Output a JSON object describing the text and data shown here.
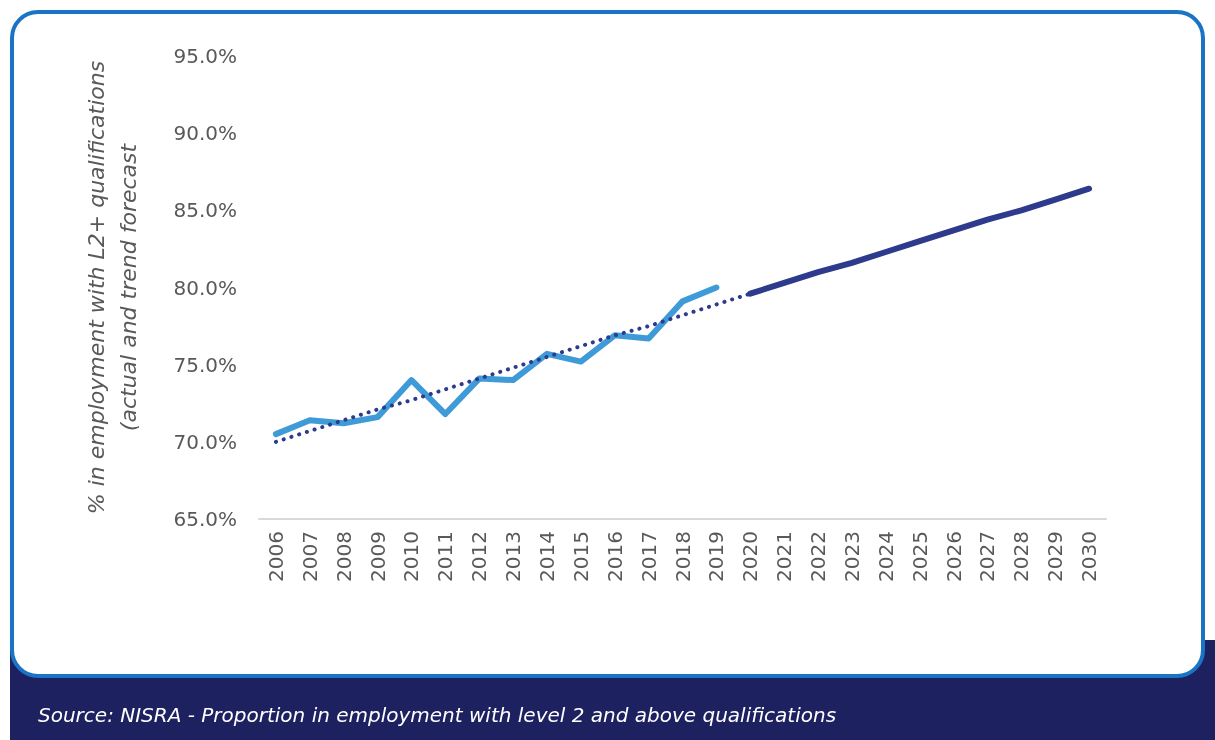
{
  "chart_data": {
    "type": "line",
    "ylabel": "% in employment with L2+ qualifications\n(actual and trend forecast",
    "categories": [
      "2006",
      "2007",
      "2008",
      "2009",
      "2010",
      "2011",
      "2012",
      "2013",
      "2014",
      "2015",
      "2016",
      "2017",
      "2018",
      "2019",
      "2020",
      "2021",
      "2022",
      "2023",
      "2024",
      "2025",
      "2026",
      "2027",
      "2028",
      "2029",
      "2030"
    ],
    "series": [
      {
        "color": "#3f9ad8",
        "line_style": "solid",
        "values": [
          70.5,
          71.4,
          71.2,
          71.6,
          74.0,
          71.8,
          74.1,
          74.0,
          75.7,
          75.2,
          76.9,
          76.7,
          79.1,
          80.0,
          null,
          null,
          null,
          null,
          null,
          null,
          null,
          null,
          null,
          null,
          null
        ]
      },
      {
        "color": "#2e3a8c",
        "line_style": "dotted",
        "values": [
          70.0,
          70.7,
          71.4,
          72.1,
          72.7,
          73.4,
          74.1,
          74.8,
          75.5,
          76.2,
          76.9,
          77.5,
          78.2,
          78.9,
          79.6,
          null,
          null,
          null,
          null,
          null,
          null,
          null,
          null,
          null,
          null
        ]
      },
      {
        "color": "#2e3a8c",
        "line_style": "solid",
        "values": [
          null,
          null,
          null,
          null,
          null,
          null,
          null,
          null,
          null,
          null,
          null,
          null,
          null,
          null,
          79.6,
          80.3,
          81.0,
          81.6,
          82.3,
          83.0,
          83.7,
          84.4,
          85.0,
          85.7,
          86.4
        ]
      }
    ],
    "ylim": [
      65,
      95
    ],
    "yticks": [
      {
        "value": 65,
        "label": "65.0%"
      },
      {
        "value": 70,
        "label": "70.0%"
      },
      {
        "value": 75,
        "label": "75.0%"
      },
      {
        "value": 80,
        "label": "80.0%"
      },
      {
        "value": 85,
        "label": "85.0%"
      },
      {
        "value": 90,
        "label": "90.0%"
      },
      {
        "value": 95,
        "label": "95.0%"
      }
    ],
    "grid": false,
    "marker": "none",
    "annotations": [
      "Source: NISRA - Proportion in employment with level 2 and above qualifications"
    ]
  }
}
